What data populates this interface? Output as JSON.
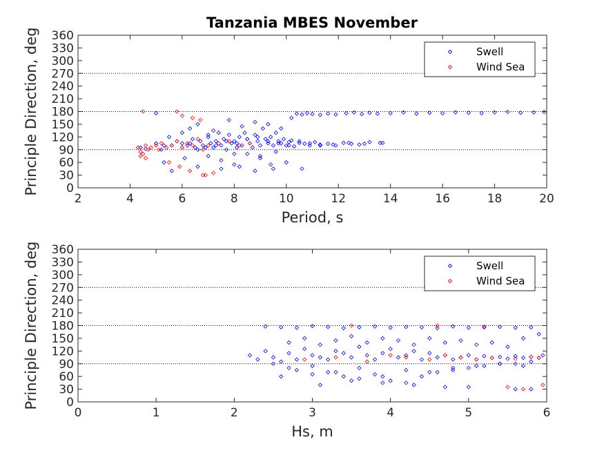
{
  "figure": {
    "title": "Tanzania MBES November",
    "colors": {
      "swell": "#0000ff",
      "windsea": "#ff0000",
      "axis": "#262626",
      "refline": "#000000"
    }
  },
  "chart_data": [
    {
      "type": "scatter",
      "title": "Tanzania MBES November",
      "xlabel": "Period, s",
      "ylabel": "Principle Direction, deg",
      "xlim": [
        2,
        20
      ],
      "ylim": [
        0,
        360
      ],
      "xticks": [
        "2",
        "4",
        "6",
        "8",
        "10",
        "12",
        "14",
        "16",
        "18",
        "20"
      ],
      "yticks": [
        "0",
        "30",
        "60",
        "90",
        "120",
        "150",
        "180",
        "210",
        "240",
        "270",
        "300",
        "330",
        "360"
      ],
      "reference_lines_y": [
        90,
        180,
        270
      ],
      "legend": {
        "position": "top-right",
        "entries": [
          "Swell",
          "Wind Sea"
        ]
      },
      "series": [
        {
          "name": "Swell",
          "marker": "diamond",
          "x": [
            4.4,
            4.6,
            5.0,
            5.3,
            5.6,
            5.8,
            6.0,
            6.2,
            6.4,
            6.5,
            6.7,
            6.8,
            7.0,
            7.1,
            7.2,
            7.3,
            7.4,
            7.5,
            7.6,
            7.7,
            7.8,
            7.9,
            8.0,
            8.1,
            8.2,
            8.3,
            8.4,
            8.5,
            8.6,
            8.7,
            8.8,
            8.9,
            9.0,
            9.1,
            9.2,
            9.3,
            9.4,
            9.5,
            9.6,
            9.7,
            9.8,
            9.9,
            10.0,
            10.1,
            10.2,
            10.3,
            10.5,
            10.7,
            10.9,
            11.1,
            11.3,
            11.6,
            11.9,
            12.2,
            12.5,
            12.8,
            13.2,
            13.6,
            5.3,
            5.6,
            6.1,
            6.6,
            7.0,
            7.5,
            8.0,
            8.5,
            9.0,
            9.5,
            6.3,
            6.6,
            7.2,
            7.8,
            8.3,
            8.8,
            9.3,
            9.8,
            10.2,
            10.4,
            10.6,
            10.8,
            11.0,
            11.3,
            11.6,
            11.9,
            12.3,
            12.6,
            12.9,
            13.2,
            13.5,
            14.0,
            14.5,
            15.0,
            15.5,
            16.0,
            16.5,
            17.0,
            17.5,
            18.0,
            18.5,
            19.0,
            19.5,
            19.9,
            5.0,
            5.5,
            6.0,
            7.0,
            8.0,
            9.0,
            9.6,
            5.2,
            5.6,
            6.0,
            6.3,
            6.6,
            6.9,
            7.3,
            7.7,
            8.1,
            8.5,
            8.9,
            9.3,
            9.7,
            10.1,
            10.5,
            10.9,
            11.3,
            11.8,
            12.4,
            13.0,
            13.7,
            7.5,
            8.2,
            8.8,
            9.4,
            10.0,
            10.6
          ],
          "y": [
            95,
            92,
            105,
            100,
            100,
            110,
            105,
            100,
            115,
            95,
            110,
            100,
            120,
            105,
            95,
            110,
            130,
            100,
            115,
            90,
            125,
            105,
            110,
            95,
            120,
            100,
            130,
            115,
            105,
            95,
            125,
            110,
            100,
            140,
            115,
            105,
            120,
            100,
            130,
            110,
            105,
            115,
            100,
            108,
            112,
            98,
            106,
            104,
            100,
            108,
            102,
            104,
            100,
            106,
            104,
            102,
            108,
            106,
            60,
            40,
            70,
            50,
            75,
            65,
            55,
            80,
            70,
            45,
            140,
            150,
            135,
            160,
            145,
            155,
            150,
            140,
            165,
            175,
            173,
            176,
            174,
            172,
            175,
            173,
            176,
            178,
            174,
            177,
            175,
            176,
            178,
            175,
            177,
            176,
            178,
            177,
            176,
            178,
            179,
            177,
            178,
            179,
            176,
            120,
            130,
            125,
            80,
            75,
            85,
            90,
            100,
            95,
            105,
            90,
            95,
            100,
            110,
            105,
            115,
            120,
            110,
            105,
            100,
            110,
            105,
            100,
            102,
            106,
            104,
            106,
            45,
            50,
            40,
            55,
            60,
            45
          ]
        },
        {
          "name": "Wind Sea",
          "marker": "diamond",
          "x": [
            4.3,
            4.4,
            4.5,
            4.6,
            4.7,
            4.8,
            5.0,
            5.2,
            5.4,
            5.6,
            5.8,
            6.0,
            6.2,
            6.4,
            6.6,
            6.8,
            7.0,
            7.4,
            7.8,
            8.2,
            8.6,
            4.5,
            5.8,
            6.0,
            6.4,
            6.7,
            5.5,
            5.9,
            6.3,
            6.8,
            4.4,
            4.6,
            5.1,
            6.9,
            7.2
          ],
          "y": [
            95,
            85,
            80,
            100,
            90,
            95,
            100,
            105,
            95,
            100,
            110,
            95,
            105,
            100,
            115,
            90,
            100,
            105,
            110,
            100,
            105,
            180,
            180,
            170,
            165,
            160,
            60,
            50,
            40,
            30,
            75,
            70,
            90,
            30,
            35
          ]
        }
      ]
    },
    {
      "type": "scatter",
      "xlabel": "Hs, m",
      "ylabel": "Principle Direction, deg",
      "xlim": [
        0,
        6
      ],
      "ylim": [
        0,
        360
      ],
      "xticks": [
        "0",
        "1",
        "2",
        "3",
        "4",
        "5",
        "6"
      ],
      "yticks": [
        "0",
        "30",
        "60",
        "90",
        "120",
        "150",
        "180",
        "210",
        "240",
        "270",
        "300",
        "330",
        "360"
      ],
      "reference_lines_y": [
        90,
        180,
        270
      ],
      "legend": {
        "position": "top-right",
        "entries": [
          "Swell",
          "Wind Sea"
        ]
      },
      "series": [
        {
          "name": "Swell",
          "marker": "diamond",
          "x": [
            2.2,
            2.3,
            2.4,
            2.5,
            2.6,
            2.7,
            2.8,
            2.9,
            3.0,
            3.1,
            3.2,
            3.3,
            3.4,
            3.5,
            3.6,
            3.7,
            3.8,
            3.9,
            4.0,
            4.1,
            4.2,
            4.3,
            4.4,
            4.5,
            4.6,
            4.7,
            4.8,
            4.9,
            5.0,
            5.1,
            5.2,
            5.3,
            5.4,
            5.5,
            5.6,
            5.7,
            5.8,
            5.9,
            2.4,
            2.6,
            2.8,
            3.0,
            3.2,
            3.4,
            3.6,
            3.8,
            4.0,
            4.2,
            4.4,
            4.6,
            4.8,
            5.0,
            5.2,
            5.4,
            5.6,
            5.8,
            2.7,
            2.9,
            3.1,
            3.3,
            3.5,
            3.7,
            3.9,
            4.1,
            4.3,
            4.5,
            4.7,
            4.9,
            5.1,
            5.3,
            5.5,
            5.7,
            5.9,
            2.8,
            3.0,
            3.3,
            3.6,
            3.9,
            4.2,
            4.5,
            4.8,
            5.1,
            5.4,
            5.7,
            2.5,
            2.7,
            3.0,
            3.2,
            3.4,
            3.6,
            3.8,
            4.0,
            4.2,
            4.4,
            4.6,
            4.8,
            5.0,
            5.2,
            5.4,
            5.6,
            5.8,
            5.95,
            2.6,
            3.1,
            3.5,
            3.9,
            4.3,
            4.7,
            5.0,
            5.6,
            5.8
          ],
          "y": [
            110,
            100,
            120,
            105,
            95,
            115,
            100,
            125,
            110,
            105,
            100,
            120,
            115,
            105,
            130,
            110,
            100,
            115,
            125,
            105,
            110,
            120,
            100,
            115,
            105,
            110,
            100,
            105,
            110,
            100,
            108,
            104,
            106,
            102,
            108,
            104,
            106,
            104,
            178,
            176,
            175,
            179,
            177,
            174,
            176,
            178,
            175,
            177,
            176,
            174,
            178,
            175,
            176,
            177,
            175,
            176,
            140,
            150,
            135,
            145,
            155,
            140,
            150,
            145,
            135,
            150,
            140,
            145,
            135,
            140,
            130,
            150,
            160,
            75,
            65,
            70,
            80,
            60,
            75,
            70,
            80,
            85,
            90,
            85,
            90,
            80,
            85,
            70,
            60,
            55,
            65,
            50,
            45,
            60,
            70,
            75,
            80,
            85,
            90,
            90,
            95,
            110,
            60,
            40,
            50,
            45,
            40,
            35,
            35,
            30,
            30
          ]
        },
        {
          "name": "Wind Sea",
          "marker": "diamond",
          "x": [
            2.9,
            3.3,
            3.7,
            4.0,
            4.2,
            4.5,
            4.7,
            4.9,
            5.1,
            5.3,
            5.6,
            5.8,
            5.9,
            3.5,
            4.6,
            5.2,
            5.5,
            5.7,
            5.95
          ],
          "y": [
            100,
            105,
            95,
            110,
            105,
            100,
            110,
            105,
            100,
            104,
            102,
            106,
            104,
            180,
            180,
            178,
            35,
            30,
            40
          ]
        }
      ]
    }
  ]
}
